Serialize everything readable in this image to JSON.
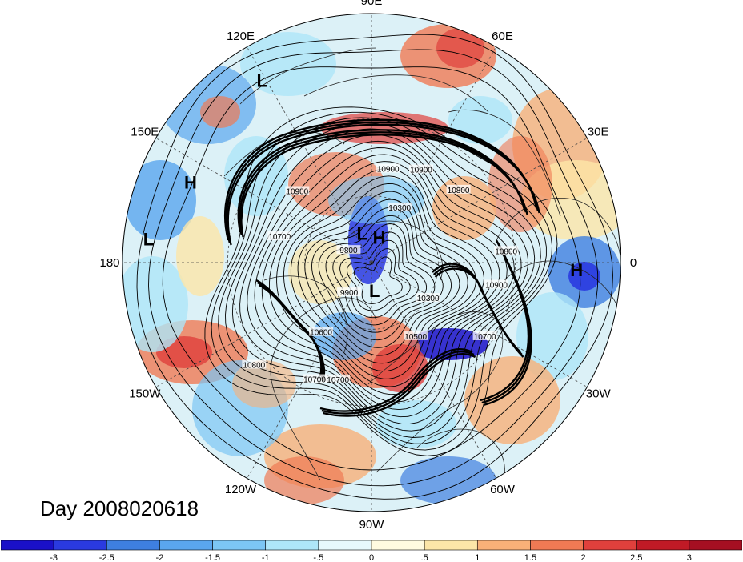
{
  "map": {
    "projection": "north-polar-stereographic",
    "longitude_labels": [
      {
        "text": "90E",
        "lon": 90
      },
      {
        "text": "60E",
        "lon": 60
      },
      {
        "text": "30E",
        "lon": 30
      },
      {
        "text": "0",
        "lon": 0
      },
      {
        "text": "30W",
        "lon": -30
      },
      {
        "text": "60W",
        "lon": -60
      },
      {
        "text": "90W",
        "lon": -90
      },
      {
        "text": "120W",
        "lon": -120
      },
      {
        "text": "150W",
        "lon": -150
      },
      {
        "text": "180",
        "lon": 180
      },
      {
        "text": "150E",
        "lon": 150
      },
      {
        "text": "120E",
        "lon": 120
      }
    ],
    "pressure_centers": [
      {
        "text": "L",
        "lon": 121,
        "lat": 9
      },
      {
        "text": "H",
        "lon": 156,
        "lat": 13
      },
      {
        "text": "L",
        "lon": 174,
        "lat": 6
      },
      {
        "text": "L",
        "lon": 108,
        "lat": 76
      },
      {
        "text": "H",
        "lon": 73,
        "lat": 78
      },
      {
        "text": "L",
        "lon": -84,
        "lat": 77
      },
      {
        "text": "H",
        "lon": -2,
        "lat": 11
      }
    ],
    "contour_labels": [
      {
        "text": "10900",
        "lon": 80,
        "lat": 48
      },
      {
        "text": "10900",
        "lon": 62,
        "lat": 44
      },
      {
        "text": "10800",
        "lon": 40,
        "lat": 41
      },
      {
        "text": "10300",
        "lon": 63,
        "lat": 62
      },
      {
        "text": "10900",
        "lon": 136,
        "lat": 45
      },
      {
        "text": "9800",
        "lon": 151,
        "lat": 78
      },
      {
        "text": "9900",
        "lon": -127,
        "lat": 73
      },
      {
        "text": "10600",
        "lon": -126,
        "lat": 52
      },
      {
        "text": "10300",
        "lon": -32,
        "lat": 60
      },
      {
        "text": "10500",
        "lon": -59,
        "lat": 52
      },
      {
        "text": "10900",
        "lon": -10,
        "lat": 36
      },
      {
        "text": "10800",
        "lon": 5,
        "lat": 33
      },
      {
        "text": "10700",
        "lon": -33,
        "lat": 33
      },
      {
        "text": "10700",
        "lon": -106,
        "lat": 38
      },
      {
        "text": "10700",
        "lon": -116,
        "lat": 35
      },
      {
        "text": "10800",
        "lon": -139,
        "lat": 26
      },
      {
        "text": "10700",
        "lon": 164,
        "lat": 48
      }
    ]
  },
  "date_label": "Day 2008020618",
  "colorbar": {
    "ticks": [
      "-3",
      "-2.5",
      "-2",
      "-1.5",
      "-1",
      "-.5",
      "0",
      ".5",
      "1",
      "1.5",
      "2",
      "2.5",
      "3"
    ],
    "colors": [
      "#1a10c8",
      "#2a3ae0",
      "#3e7fe0",
      "#5aa6ee",
      "#7cc6f4",
      "#aee6f8",
      "#e6f8fc",
      "#fffbe0",
      "#fce6a8",
      "#f8b078",
      "#f07a54",
      "#e0403c",
      "#c01a26",
      "#a50f22"
    ]
  }
}
